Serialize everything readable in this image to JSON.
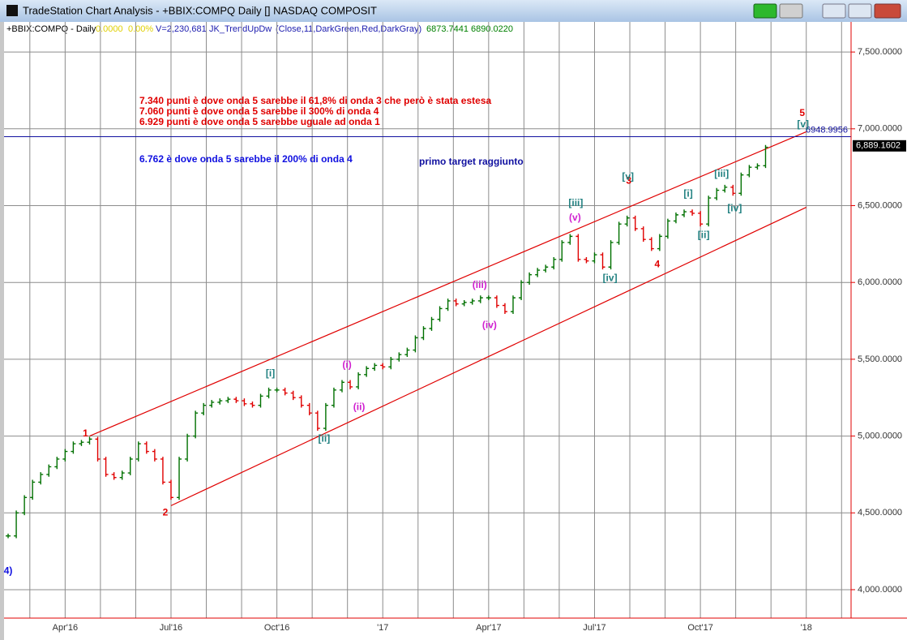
{
  "window": {
    "title": "TradeStation Chart Analysis - +BBIX:COMPQ Daily [] NASDAQ COMPOSIT"
  },
  "header": {
    "symbol": "+BBIX:COMPQ - Daily",
    "change": "0.0000",
    "change_pct": "0.00%",
    "volume": "V=2,230,681",
    "indicator": "JK_TrendUpDw",
    "indicator_params": "(Close,11,DarkGreen,Red,DarkGray)",
    "value1": "6873.7441",
    "value2": "6890.0220"
  },
  "chart_data": {
    "type": "trendbars",
    "categories": [
      null,
      null,
      null,
      null,
      null,
      null,
      null,
      "Apr'16",
      null,
      null,
      null,
      null,
      null,
      null,
      null,
      null,
      null,
      null,
      null,
      null,
      "Jul'16",
      null,
      null,
      null,
      null,
      null,
      null,
      null,
      null,
      null,
      null,
      null,
      null,
      "Oct'16",
      null,
      null,
      null,
      null,
      null,
      null,
      null,
      null,
      null,
      null,
      null,
      null,
      "'17",
      null,
      null,
      null,
      null,
      null,
      null,
      null,
      null,
      null,
      null,
      null,
      null,
      "Apr'17",
      null,
      null,
      null,
      null,
      null,
      null,
      null,
      null,
      null,
      null,
      null,
      null,
      "Jul'17",
      null,
      null,
      null,
      null,
      null,
      null,
      null,
      null,
      null,
      null,
      null,
      null,
      "Oct'17",
      null,
      null,
      null,
      null,
      null,
      null,
      null,
      null,
      null,
      null,
      null,
      null,
      "'18",
      null,
      null,
      null,
      null,
      null
    ],
    "values": [
      4350,
      4500,
      4600,
      4700,
      4750,
      4800,
      4850,
      4900,
      4950,
      4960,
      4980,
      4850,
      4750,
      4730,
      4760,
      4850,
      4950,
      4900,
      4850,
      4700,
      4600,
      4850,
      5000,
      5150,
      5200,
      5220,
      5230,
      5240,
      5230,
      5210,
      5200,
      5260,
      5300,
      5300,
      5280,
      5250,
      5200,
      5150,
      5050,
      5200,
      5300,
      5350,
      5320,
      5400,
      5440,
      5460,
      5450,
      5500,
      5530,
      5560,
      5640,
      5700,
      5760,
      5830,
      5880,
      5860,
      5870,
      5880,
      5900,
      5900,
      5850,
      5810,
      5900,
      6000,
      6050,
      6080,
      6100,
      6150,
      6260,
      6300,
      6150,
      6140,
      6180,
      6100,
      6260,
      6380,
      6420,
      6350,
      6280,
      6220,
      6300,
      6400,
      6440,
      6460,
      6450,
      6380,
      6550,
      6600,
      6620,
      6580,
      6700,
      6750,
      6760,
      6880,
      null,
      null,
      null,
      null,
      null,
      null,
      null,
      null,
      null,
      null
    ],
    "up_color": "#007000",
    "down_color": "#e00000",
    "ylim": [
      3815,
      7696
    ],
    "yticks": [
      {
        "value": 4000,
        "label": "4,000.0000"
      },
      {
        "value": 4500,
        "label": "4,500.0000"
      },
      {
        "value": 5000,
        "label": "5,000.0000"
      },
      {
        "value": 5500,
        "label": "5,500.0000"
      },
      {
        "value": 6000,
        "label": "6,000.0000"
      },
      {
        "value": 6500,
        "label": "6,500.0000"
      },
      {
        "value": 7000,
        "label": "7,000.0000"
      },
      {
        "value": 7500,
        "label": "7,500.0000"
      }
    ],
    "grid": true,
    "last_price": {
      "value": 6889.1602,
      "label": "6,889.1602"
    },
    "hline": {
      "value": 6948.9956,
      "label": "6948.9956",
      "color": "#1010a0"
    },
    "trendlines": [
      {
        "color": "#e00000",
        "x": [
          10,
          98
        ],
        "y": [
          5000,
          6981
        ]
      },
      {
        "color": "#e00000",
        "x": [
          20,
          98
        ],
        "y": [
          4547,
          6489
        ]
      }
    ],
    "wave_labels": [
      {
        "text": "1",
        "x": 9.5,
        "y": 5015,
        "color": "#e00000"
      },
      {
        "text": "2",
        "x": 19.3,
        "y": 4500,
        "color": "#e00000"
      },
      {
        "text": "3",
        "x": 76.2,
        "y": 6660,
        "color": "#e00000"
      },
      {
        "text": "4",
        "x": 79.7,
        "y": 6115,
        "color": "#e00000"
      },
      {
        "text": "5",
        "x": 97.5,
        "y": 7100,
        "color": "#e00000"
      },
      {
        "text": "4)",
        "x": 0,
        "y": 4120,
        "color": "#1010e0"
      },
      {
        "text": "[i]",
        "x": 32.2,
        "y": 5405,
        "color": "#208080"
      },
      {
        "text": "[ii]",
        "x": 38.8,
        "y": 4980,
        "color": "#208080"
      },
      {
        "text": "[iii]",
        "x": 69.7,
        "y": 6515,
        "color": "#208080"
      },
      {
        "text": "[iv]",
        "x": 73.9,
        "y": 6025,
        "color": "#208080"
      },
      {
        "text": "[v]",
        "x": 76.1,
        "y": 6685,
        "color": "#208080"
      },
      {
        "text": "[i]",
        "x": 83.5,
        "y": 6575,
        "color": "#208080"
      },
      {
        "text": "[ii]",
        "x": 85.4,
        "y": 6305,
        "color": "#208080"
      },
      {
        "text": "[iii]",
        "x": 87.6,
        "y": 6705,
        "color": "#208080"
      },
      {
        "text": "[iv]",
        "x": 89.2,
        "y": 6480,
        "color": "#208080"
      },
      {
        "text": "[v]",
        "x": 97.6,
        "y": 7025,
        "color": "#208080"
      },
      {
        "text": "(i)",
        "x": 41.6,
        "y": 5460,
        "color": "#d020d0"
      },
      {
        "text": "(ii)",
        "x": 43.1,
        "y": 5185,
        "color": "#d020d0"
      },
      {
        "text": "(iii)",
        "x": 57.9,
        "y": 5980,
        "color": "#d020d0"
      },
      {
        "text": "(iv)",
        "x": 59.1,
        "y": 5720,
        "color": "#d020d0"
      },
      {
        "text": "(v)",
        "x": 69.6,
        "y": 6420,
        "color": "#d020d0"
      }
    ],
    "notes_red": [
      "7.340 punti è dove onda 5 sarebbe il 61,8% di onda 3 che però è stata estesa",
      "7.060 punti è dove onda 5 sarebbe il 300% di onda 4",
      "6.929 punti è dove onda 5 sarebbe uguale ad onda 1"
    ],
    "notes_blue": [
      "6.762 è dove onda 5 sarebbe il 200% di onda 4",
      "primo target raggiunto"
    ]
  }
}
